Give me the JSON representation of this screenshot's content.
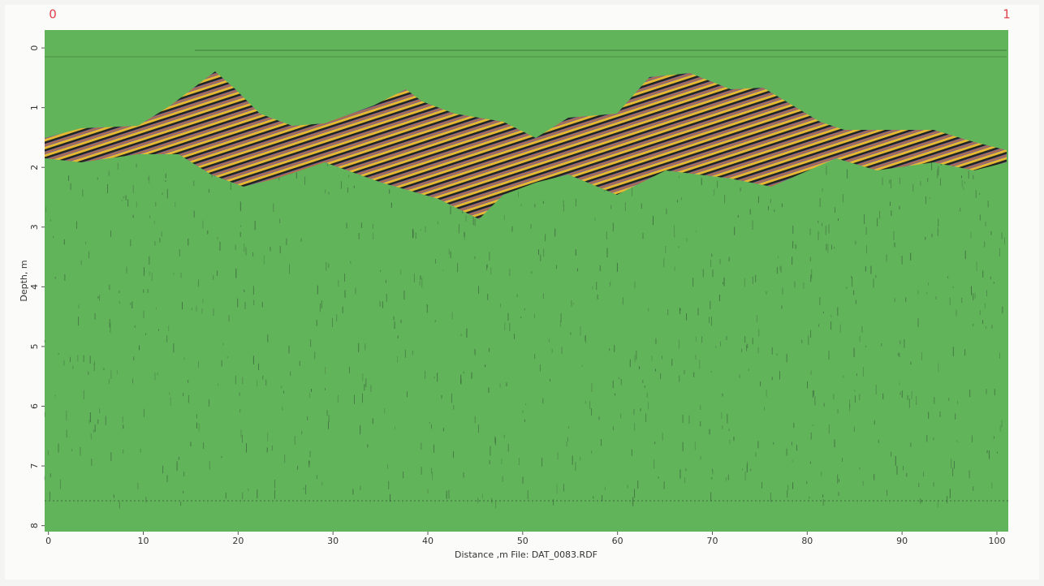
{
  "chart_data": {
    "type": "radargram",
    "corner_labels": [
      "0",
      "1"
    ],
    "xlabel": "Distance ,m   File: DAT_0083.RDF",
    "ylabel": "Depth, m",
    "background_color": "#62b45a",
    "xlim": [
      -0.4,
      101.2
    ],
    "xticks": [
      0,
      10,
      20,
      30,
      40,
      50,
      60,
      70,
      80,
      90,
      100
    ],
    "ylim": [
      -0.3,
      8.1
    ],
    "yticks": [
      0,
      1,
      2,
      3,
      4,
      5,
      6,
      7,
      8
    ]
  }
}
